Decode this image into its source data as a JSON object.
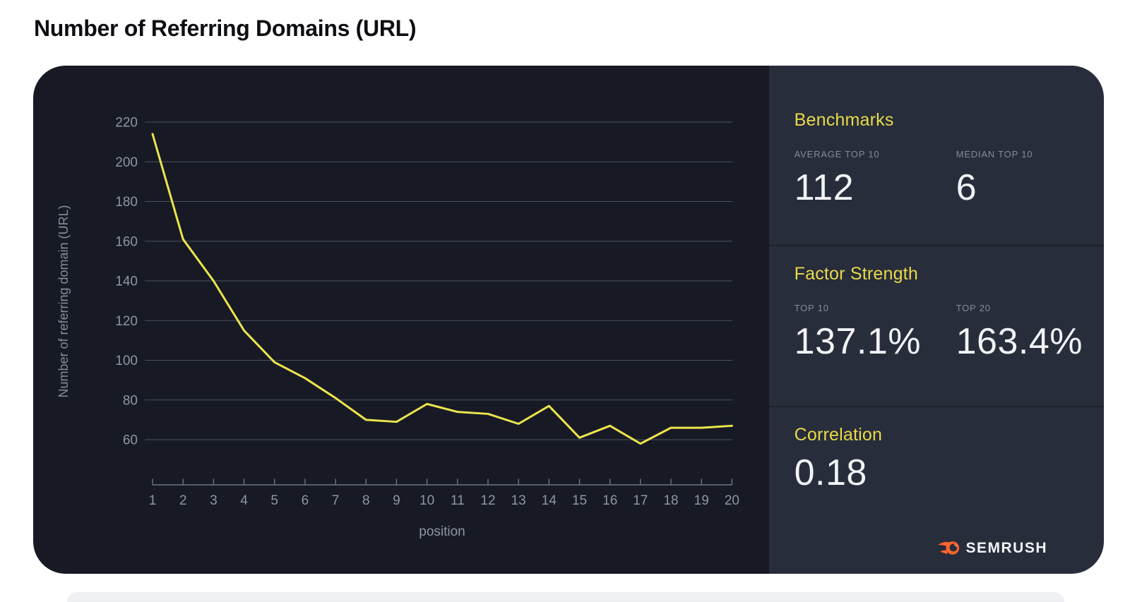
{
  "page": {
    "title": "Number of Referring Domains (URL)"
  },
  "colors": {
    "accent_yellow": "#e8da4a",
    "line_yellow": "#ece44d",
    "chart_bg": "#171a24",
    "panel_bg": "#272d3a",
    "semrush_orange": "#ff642d"
  },
  "chart_data": {
    "type": "line",
    "title": "Number of Referring Domains (URL)",
    "xlabel": "position",
    "ylabel": "Number of referring domain (URL)",
    "x": [
      1,
      2,
      3,
      4,
      5,
      6,
      7,
      8,
      9,
      10,
      11,
      12,
      13,
      14,
      15,
      16,
      17,
      18,
      19,
      20
    ],
    "values": [
      214,
      161,
      140,
      115,
      99,
      91,
      81,
      70,
      69,
      78,
      74,
      73,
      68,
      77,
      61,
      67,
      58,
      66,
      66,
      67
    ],
    "yticks": [
      220,
      200,
      180,
      160,
      140,
      120,
      100,
      80,
      60
    ],
    "ylim": [
      48,
      228
    ],
    "grid": true,
    "legend": "none",
    "line_color": "#ece44d"
  },
  "panel": {
    "sections": [
      {
        "title": "Benchmarks",
        "items": [
          {
            "label": "AVERAGE TOP 10",
            "value": "112"
          },
          {
            "label": "MEDIAN TOP 10",
            "value": "6"
          }
        ]
      },
      {
        "title": "Factor Strength",
        "items": [
          {
            "label": "TOP 10",
            "value": "137.1%"
          },
          {
            "label": "TOP 20",
            "value": "163.4%"
          }
        ]
      },
      {
        "title": "Correlation",
        "items": [
          {
            "label": "",
            "value": "0.18"
          }
        ]
      }
    ],
    "logo_text": "SEMRUSH"
  }
}
